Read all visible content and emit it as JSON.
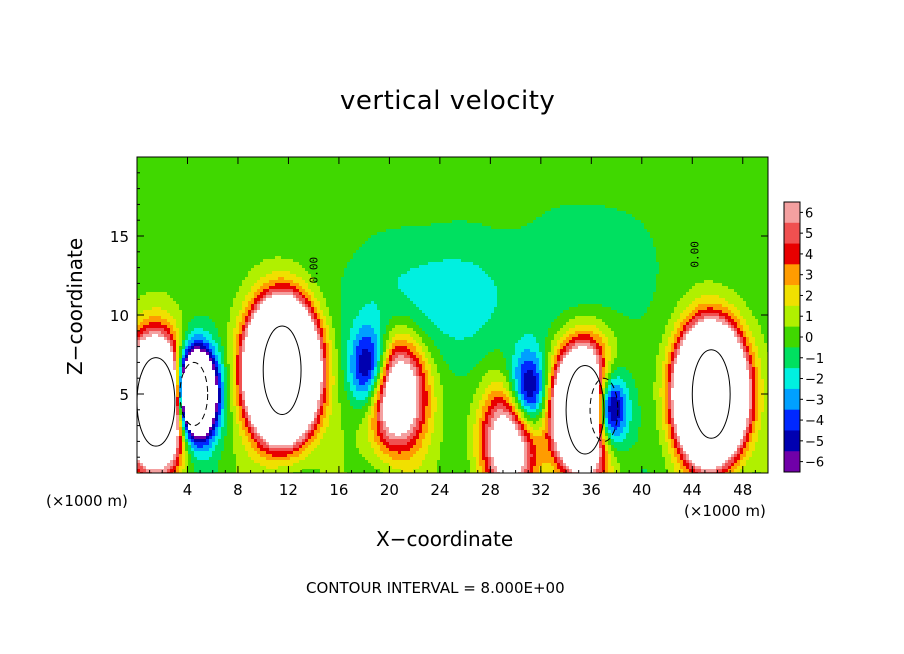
{
  "chart_data": {
    "type": "heatmap",
    "title": "vertical velocity",
    "xlabel": "X−coordinate",
    "ylabel": "Z−coordinate",
    "x_unit_label_left": "(×1000 m)",
    "x_unit_label_right": "(×1000 m)",
    "contour_interval_text": "CONTOUR INTERVAL = 8.000E+00",
    "x_ticks": [
      "4",
      "8",
      "12",
      "16",
      "20",
      "24",
      "28",
      "32",
      "36",
      "40",
      "44",
      "48"
    ],
    "y_ticks": [
      "5",
      "10",
      "15"
    ],
    "xlim": [
      0,
      50
    ],
    "ylim": [
      0,
      20
    ],
    "colorbar": {
      "labels": [
        "6",
        "5",
        "4",
        "3",
        "2",
        "1",
        "0",
        "−1",
        "−2",
        "−3",
        "−4",
        "−5",
        "−6"
      ],
      "values": [
        6,
        5,
        4,
        3,
        2,
        1,
        0,
        -1,
        -2,
        -3,
        -4,
        -5,
        -6
      ],
      "colors": [
        "#f4a0a0",
        "#f05050",
        "#e80000",
        "#ff9c00",
        "#f0e000",
        "#b0f000",
        "#40d800",
        "#00e060",
        "#00f0e0",
        "#00a0ff",
        "#0028ff",
        "#0000b0",
        "#7000a8"
      ]
    },
    "contour_labels": [
      {
        "text": "0.00",
        "x": 14.3,
        "y": 12.0
      },
      {
        "text": "0.00",
        "x": 44.5,
        "y": 13.0
      }
    ],
    "features": [
      {
        "kind": "updraft",
        "x": 11.5,
        "z": 6.5,
        "peak": 50
      },
      {
        "kind": "updraft",
        "x": 45.5,
        "z": 5.0,
        "peak": 45
      },
      {
        "kind": "updraft",
        "x": 1.5,
        "z": 4.5,
        "peak": 30
      },
      {
        "kind": "updraft",
        "x": 35.5,
        "z": 4.0,
        "peak": 30
      },
      {
        "kind": "updraft",
        "x": 20.5,
        "z": 5.0,
        "peak": 12
      },
      {
        "kind": "updraft",
        "x": 29.5,
        "z": 2.0,
        "peak": 10
      },
      {
        "kind": "downdraft",
        "x": 4.5,
        "z": 5.0,
        "peak": -25
      },
      {
        "kind": "downdraft",
        "x": 37.0,
        "z": 4.0,
        "peak": -20
      },
      {
        "kind": "downdraft",
        "x": 18.5,
        "z": 6.5,
        "peak": -8
      },
      {
        "kind": "downdraft",
        "x": 31.0,
        "z": 5.0,
        "peak": -8
      }
    ]
  }
}
